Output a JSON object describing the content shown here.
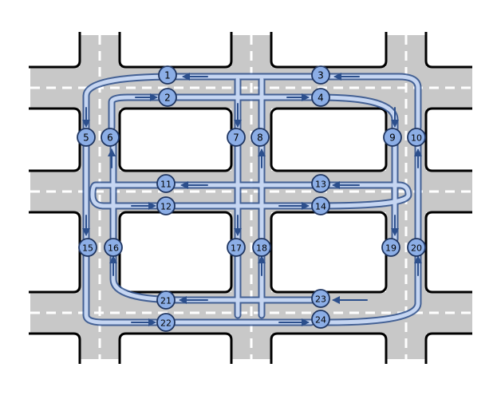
{
  "colors": {
    "road": "#c8c8c8",
    "curb": "#000000",
    "lane_dash": "#ffffff",
    "lane_fill": "#c6d6f2",
    "lane_edge": "#2c4f8c",
    "node_fill": "#8caee6",
    "node_edge": "#1f3560",
    "node_text": "#000000"
  },
  "nodes": [
    {
      "id": 1,
      "label": "1"
    },
    {
      "id": 2,
      "label": "2"
    },
    {
      "id": 3,
      "label": "3"
    },
    {
      "id": 4,
      "label": "4"
    },
    {
      "id": 5,
      "label": "5"
    },
    {
      "id": 6,
      "label": "6"
    },
    {
      "id": 7,
      "label": "7"
    },
    {
      "id": 8,
      "label": "8"
    },
    {
      "id": 9,
      "label": "9"
    },
    {
      "id": 10,
      "label": "10"
    },
    {
      "id": 11,
      "label": "11"
    },
    {
      "id": 12,
      "label": "12"
    },
    {
      "id": 13,
      "label": "13"
    },
    {
      "id": 14,
      "label": "14"
    },
    {
      "id": 15,
      "label": "15"
    },
    {
      "id": 16,
      "label": "16"
    },
    {
      "id": 17,
      "label": "17"
    },
    {
      "id": 18,
      "label": "18"
    },
    {
      "id": 19,
      "label": "19"
    },
    {
      "id": 20,
      "label": "20"
    },
    {
      "id": 21,
      "label": "21"
    },
    {
      "id": 22,
      "label": "22"
    },
    {
      "id": 23,
      "label": "23"
    },
    {
      "id": 24,
      "label": "24"
    }
  ]
}
